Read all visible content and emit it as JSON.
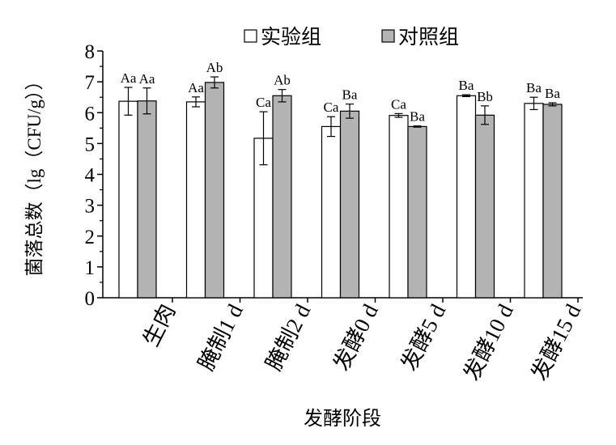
{
  "chart_data": {
    "type": "bar",
    "title": "",
    "xlabel": "发酵阶段",
    "ylabel": "菌落总数（lg（CFU/g））",
    "ylim": [
      0,
      8
    ],
    "yticks": [
      "0",
      "1",
      "2",
      "3",
      "4",
      "5",
      "6",
      "7",
      "8"
    ],
    "categories": [
      "生肉",
      "腌制1 d",
      "腌制2 d",
      "发酵0 d",
      "发酵5 d",
      "发酵10 d",
      "发酵15 d"
    ],
    "legend_position": "top-center",
    "series": [
      {
        "name": "实验组",
        "color": "#ffffff",
        "values": [
          6.37,
          6.35,
          5.17,
          5.55,
          5.91,
          6.55,
          6.3
        ],
        "errors": [
          0.45,
          0.16,
          0.86,
          0.32,
          0.06,
          0.03,
          0.2
        ],
        "labels": [
          "Aa",
          "Aa",
          "Ca",
          "Ca",
          "Ca",
          "Ba",
          "Ba"
        ]
      },
      {
        "name": "对照组",
        "color": "#b3b3b3",
        "values": [
          6.38,
          6.98,
          6.55,
          6.05,
          5.55,
          5.92,
          6.27
        ],
        "errors": [
          0.42,
          0.18,
          0.2,
          0.23,
          0.02,
          0.3,
          0.05
        ],
        "labels": [
          "Aa",
          "Ab",
          "Ab",
          "Ba",
          "Ba",
          "Bb",
          "Ba"
        ]
      }
    ]
  }
}
